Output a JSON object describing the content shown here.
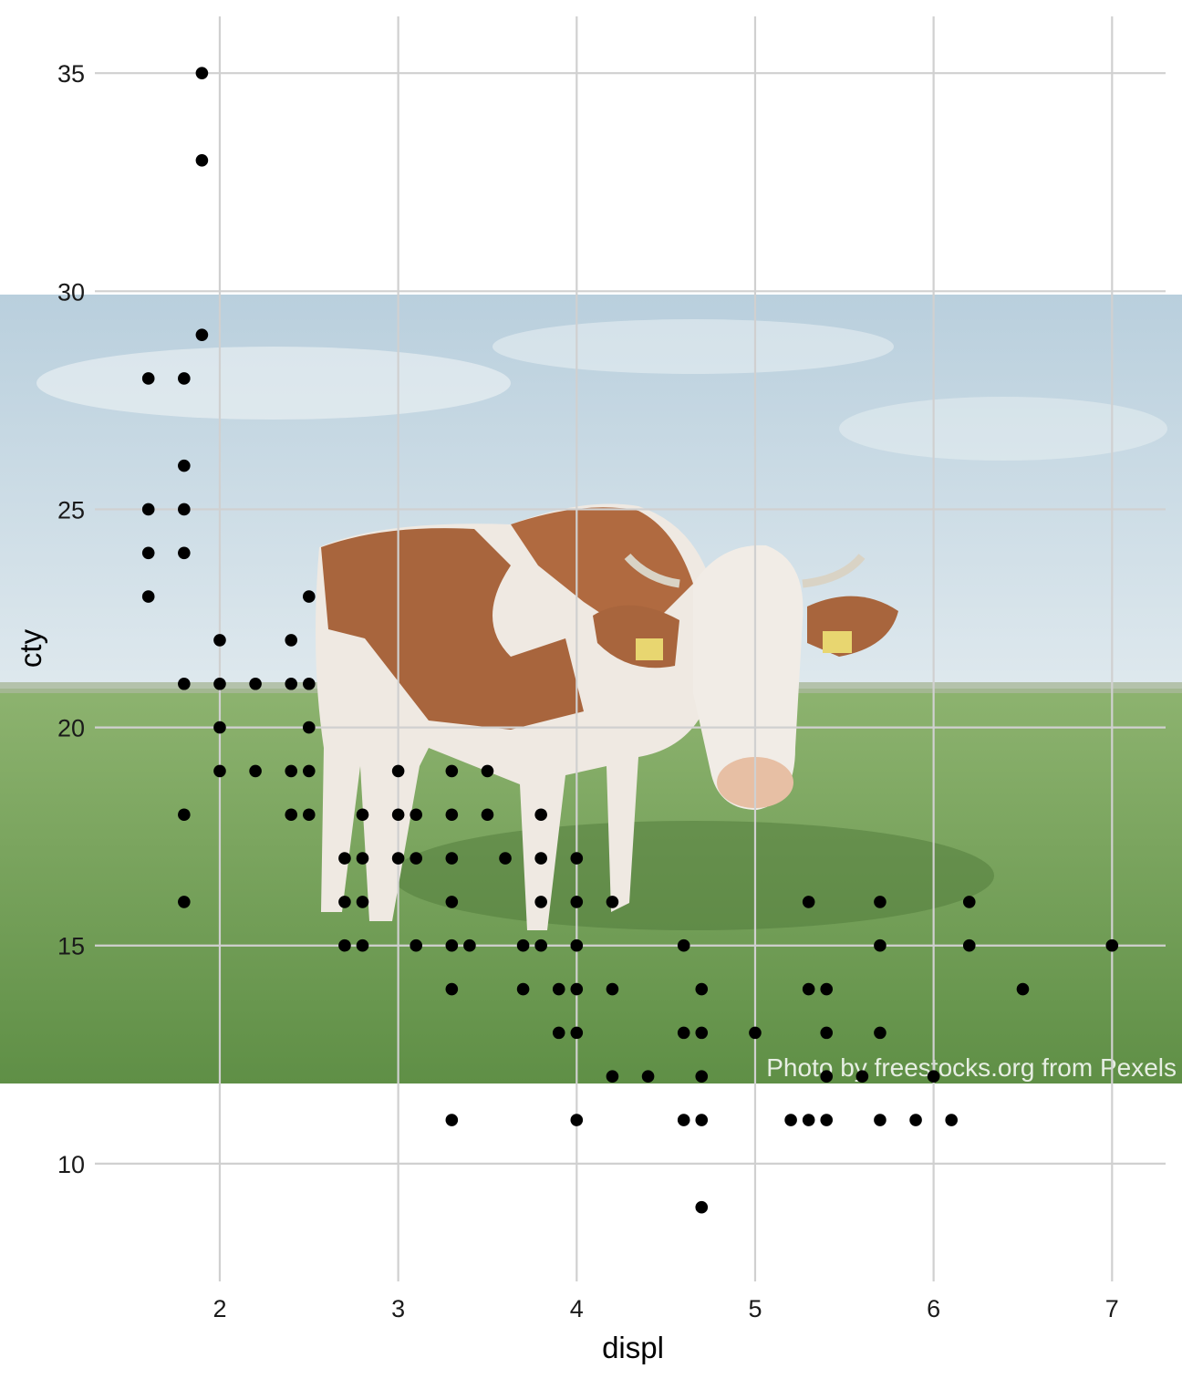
{
  "background_photo": {
    "subject": "cow-in-pasture",
    "credit": "Photo by freestocks.org from Pexels",
    "colors": {
      "sky": "#bcd3e0",
      "grass": "#6e9a56",
      "cow_brown": "#a8653d",
      "cow_white": "#efe9e2"
    }
  },
  "chart_data": {
    "type": "scatter",
    "title": "",
    "xlabel": "displ",
    "ylabel": "cty",
    "xlim": [
      1.3,
      7.3
    ],
    "ylim": [
      7.3,
      36.3
    ],
    "x_ticks": [
      2,
      3,
      4,
      5,
      6,
      7
    ],
    "y_ticks": [
      10,
      15,
      20,
      25,
      30,
      35
    ],
    "grid": true,
    "point_color": "#000000",
    "points": [
      [
        1.9,
        35
      ],
      [
        1.9,
        33
      ],
      [
        1.9,
        29
      ],
      [
        1.6,
        28
      ],
      [
        1.8,
        28
      ],
      [
        1.8,
        26
      ],
      [
        1.6,
        25
      ],
      [
        1.8,
        25
      ],
      [
        1.6,
        24
      ],
      [
        1.8,
        24
      ],
      [
        1.6,
        23
      ],
      [
        2.5,
        23
      ],
      [
        2.0,
        22
      ],
      [
        2.4,
        22
      ],
      [
        1.8,
        21
      ],
      [
        2.0,
        21
      ],
      [
        2.2,
        21
      ],
      [
        2.4,
        21
      ],
      [
        2.5,
        21
      ],
      [
        2.0,
        20
      ],
      [
        2.5,
        20
      ],
      [
        2.0,
        19
      ],
      [
        2.2,
        19
      ],
      [
        2.4,
        19
      ],
      [
        2.5,
        19
      ],
      [
        3.0,
        19
      ],
      [
        3.3,
        19
      ],
      [
        3.5,
        19
      ],
      [
        1.8,
        18
      ],
      [
        2.4,
        18
      ],
      [
        2.5,
        18
      ],
      [
        2.8,
        18
      ],
      [
        3.0,
        18
      ],
      [
        3.1,
        18
      ],
      [
        3.3,
        18
      ],
      [
        3.5,
        18
      ],
      [
        3.8,
        18
      ],
      [
        2.7,
        17
      ],
      [
        2.8,
        17
      ],
      [
        3.0,
        17
      ],
      [
        3.1,
        17
      ],
      [
        3.3,
        17
      ],
      [
        3.6,
        17
      ],
      [
        3.8,
        17
      ],
      [
        4.0,
        17
      ],
      [
        1.8,
        16
      ],
      [
        2.7,
        16
      ],
      [
        2.8,
        16
      ],
      [
        3.3,
        16
      ],
      [
        3.8,
        16
      ],
      [
        4.0,
        16
      ],
      [
        4.2,
        16
      ],
      [
        5.3,
        16
      ],
      [
        5.7,
        16
      ],
      [
        6.2,
        16
      ],
      [
        2.7,
        15
      ],
      [
        2.8,
        15
      ],
      [
        3.1,
        15
      ],
      [
        3.3,
        15
      ],
      [
        3.4,
        15
      ],
      [
        3.7,
        15
      ],
      [
        3.8,
        15
      ],
      [
        4.0,
        15
      ],
      [
        4.6,
        15
      ],
      [
        5.7,
        15
      ],
      [
        6.2,
        15
      ],
      [
        7.0,
        15
      ],
      [
        3.3,
        14
      ],
      [
        3.7,
        14
      ],
      [
        3.9,
        14
      ],
      [
        4.0,
        14
      ],
      [
        4.2,
        14
      ],
      [
        4.7,
        14
      ],
      [
        5.3,
        14
      ],
      [
        5.4,
        14
      ],
      [
        6.5,
        14
      ],
      [
        3.9,
        13
      ],
      [
        4.0,
        13
      ],
      [
        4.6,
        13
      ],
      [
        4.7,
        13
      ],
      [
        5.0,
        13
      ],
      [
        5.4,
        13
      ],
      [
        5.7,
        13
      ],
      [
        4.2,
        12
      ],
      [
        4.4,
        12
      ],
      [
        4.7,
        12
      ],
      [
        5.4,
        12
      ],
      [
        5.6,
        12
      ],
      [
        6.0,
        12
      ],
      [
        3.3,
        11
      ],
      [
        4.0,
        11
      ],
      [
        4.6,
        11
      ],
      [
        4.7,
        11
      ],
      [
        5.2,
        11
      ],
      [
        5.3,
        11
      ],
      [
        5.4,
        11
      ],
      [
        5.7,
        11
      ],
      [
        5.9,
        11
      ],
      [
        6.1,
        11
      ],
      [
        4.7,
        9
      ]
    ]
  }
}
